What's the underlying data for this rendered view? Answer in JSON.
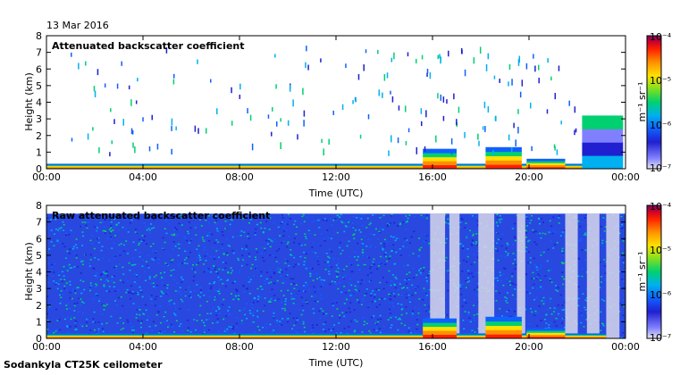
{
  "date": "13 Mar 2016",
  "site": "Sodankyla CT25K ceilometer",
  "colorbar": {
    "unit_label": "m⁻¹ sr⁻¹",
    "ticks": [
      "10⁻⁴",
      "10⁻⁵",
      "10⁻⁶",
      "10⁻⁷"
    ],
    "colors": [
      "#e6e6f2",
      "#8080ff",
      "#2020d0",
      "#1060ff",
      "#00b0f0",
      "#00d070",
      "#80e020",
      "#ffe000",
      "#ff9000",
      "#ff2000",
      "#c00030",
      "#800060"
    ]
  },
  "chart_data": [
    {
      "type": "heatmap",
      "title": "Attenuated backscatter coefficient",
      "xlabel": "Time (UTC)",
      "ylabel": "Height (km)",
      "x_ticks": [
        "00:00",
        "04:00",
        "08:00",
        "12:00",
        "16:00",
        "20:00",
        "00:00"
      ],
      "y_ticks": [
        "0",
        "1",
        "2",
        "3",
        "4",
        "5",
        "6",
        "7",
        "8"
      ],
      "xlim": [
        0,
        24
      ],
      "ylim": [
        0,
        8
      ],
      "color_scale": "log",
      "clim": [
        1e-07,
        0.0001
      ],
      "features": [
        {
          "time_start": 0,
          "time_end": 23.2,
          "height_top": 0.3,
          "level": "high"
        },
        {
          "time_start": 15.6,
          "time_end": 17.0,
          "height_top": 1.2,
          "level": "high"
        },
        {
          "time_start": 18.2,
          "time_end": 19.7,
          "height_top": 1.3,
          "level": "high"
        },
        {
          "time_start": 19.9,
          "time_end": 21.5,
          "height_top": 0.6,
          "level": "high"
        },
        {
          "time_start": 22.2,
          "time_end": 23.9,
          "height_top": 3.2,
          "level": "medium"
        }
      ]
    },
    {
      "type": "heatmap",
      "title": "Raw attenuated backscatter coefficient",
      "xlabel": "Time (UTC)",
      "ylabel": "Height (km)",
      "x_ticks": [
        "00:00",
        "04:00",
        "08:00",
        "12:00",
        "16:00",
        "20:00",
        "00:00"
      ],
      "y_ticks": [
        "0",
        "1",
        "2",
        "3",
        "4",
        "5",
        "6",
        "7",
        "8"
      ],
      "xlim": [
        0,
        24
      ],
      "ylim": [
        0,
        8
      ],
      "color_scale": "log",
      "clim": [
        1e-07,
        0.0001
      ],
      "features": [
        {
          "time_start": 0,
          "time_end": 24,
          "height_top": 7.5,
          "level": "noise"
        },
        {
          "time_start": 0,
          "time_end": 23.2,
          "height_top": 0.3,
          "level": "high"
        },
        {
          "time_start": 15.6,
          "time_end": 17.0,
          "height_top": 1.2,
          "level": "high"
        },
        {
          "time_start": 18.2,
          "time_end": 19.7,
          "height_top": 1.3,
          "level": "high"
        },
        {
          "time_start": 19.9,
          "time_end": 21.5,
          "height_top": 0.6,
          "level": "high"
        }
      ]
    }
  ]
}
